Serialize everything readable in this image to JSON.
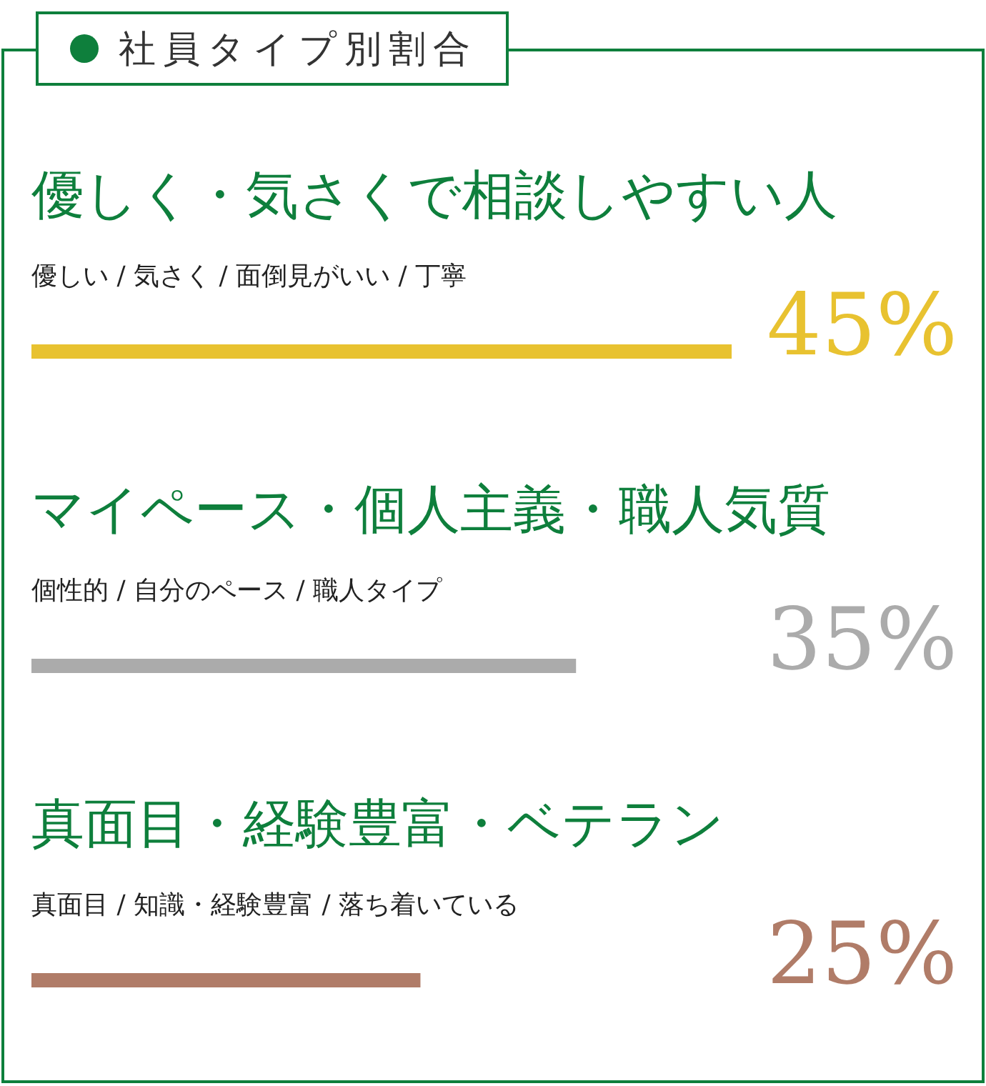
{
  "chart_data": {
    "type": "bar",
    "orientation": "horizontal",
    "title": "社員タイプ別割合",
    "categories": [
      "優しく・気さくで相談しやすい人",
      "マイペース・個人主義・職人気質",
      "真面目・経験豊富・ベテラン"
    ],
    "values": [
      45,
      35,
      25
    ],
    "colors": [
      "#e8c230",
      "#ababab",
      "#b07c68"
    ],
    "value_labels": [
      "45%",
      "35%",
      "25%"
    ],
    "annotations": [
      "優しい / 気さく / 面倒見がいい / 丁寧",
      "個性的 / 自分のペース / 職人タイプ",
      "真面目 / 知識・経験豊富 / 落ち着いている"
    ]
  }
}
